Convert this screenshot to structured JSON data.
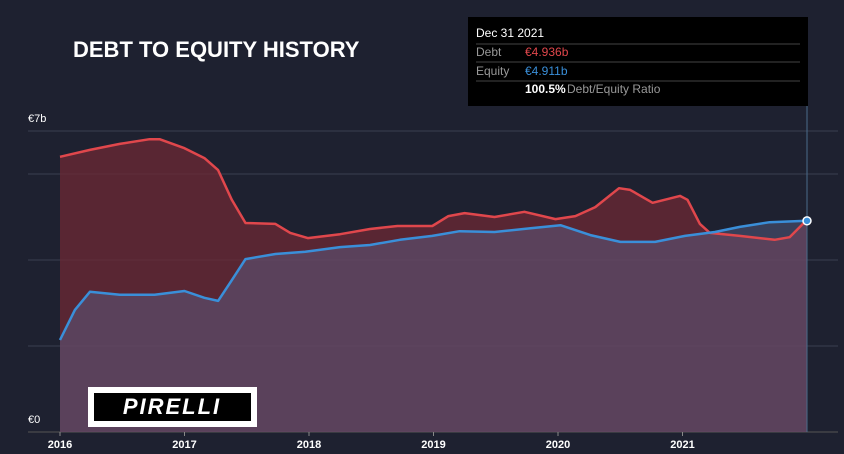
{
  "chart_data": {
    "type": "area_line",
    "title": "DEBT TO EQUITY HISTORY",
    "xlim": [
      2016,
      2022
    ],
    "xticks": [
      2016,
      2017,
      2018,
      2019,
      2020,
      2021
    ],
    "ylim": [
      0,
      7
    ],
    "yticks": [
      {
        "value": 0,
        "label": "€0"
      },
      {
        "value": 7,
        "label": "€7b"
      }
    ],
    "grid_lines": [
      2,
      4,
      6,
      7
    ],
    "series": [
      {
        "name": "Debt",
        "color": "#e0474c",
        "x": [
          2016.0,
          2016.24,
          2016.48,
          2016.72,
          2016.8,
          2017.0,
          2017.16,
          2017.27,
          2017.38,
          2017.49,
          2017.73,
          2017.85,
          2017.99,
          2018.25,
          2018.49,
          2018.71,
          2018.99,
          2019.12,
          2019.25,
          2019.49,
          2019.73,
          2019.98,
          2020.14,
          2020.3,
          2020.49,
          2020.58,
          2020.76,
          2020.98,
          2021.04,
          2021.14,
          2021.22,
          2021.46,
          2021.74,
          2021.86,
          2022.0
        ],
        "values": [
          6.4,
          6.56,
          6.7,
          6.81,
          6.81,
          6.6,
          6.37,
          6.09,
          5.4,
          4.86,
          4.84,
          4.63,
          4.51,
          4.6,
          4.72,
          4.79,
          4.79,
          5.02,
          5.09,
          5.0,
          5.12,
          4.95,
          5.02,
          5.23,
          5.67,
          5.63,
          5.33,
          5.49,
          5.4,
          4.84,
          4.63,
          4.56,
          4.47,
          4.53,
          4.936
        ]
      },
      {
        "name": "Equity",
        "color": "#3a8fd9",
        "x": [
          2016.0,
          2016.12,
          2016.24,
          2016.48,
          2016.76,
          2017.0,
          2017.16,
          2017.27,
          2017.38,
          2017.49,
          2017.73,
          2017.97,
          2018.25,
          2018.49,
          2018.73,
          2018.99,
          2019.21,
          2019.49,
          2019.78,
          2020.02,
          2020.26,
          2020.5,
          2020.78,
          2021.02,
          2021.26,
          2021.46,
          2021.7,
          2022.0
        ],
        "values": [
          2.14,
          2.84,
          3.26,
          3.19,
          3.19,
          3.28,
          3.12,
          3.05,
          3.53,
          4.02,
          4.14,
          4.19,
          4.3,
          4.35,
          4.47,
          4.56,
          4.67,
          4.65,
          4.74,
          4.81,
          4.58,
          4.42,
          4.42,
          4.56,
          4.65,
          4.77,
          4.88,
          4.911
        ]
      }
    ],
    "tooltip": {
      "date": "Dec 31 2021",
      "debt_label": "Debt",
      "debt_value": "€4.936b",
      "equity_label": "Equity",
      "equity_value": "€4.911b",
      "ratio_value": "100.5%",
      "ratio_label": "Debt/Equity Ratio"
    },
    "logo": "PIRELLI"
  }
}
